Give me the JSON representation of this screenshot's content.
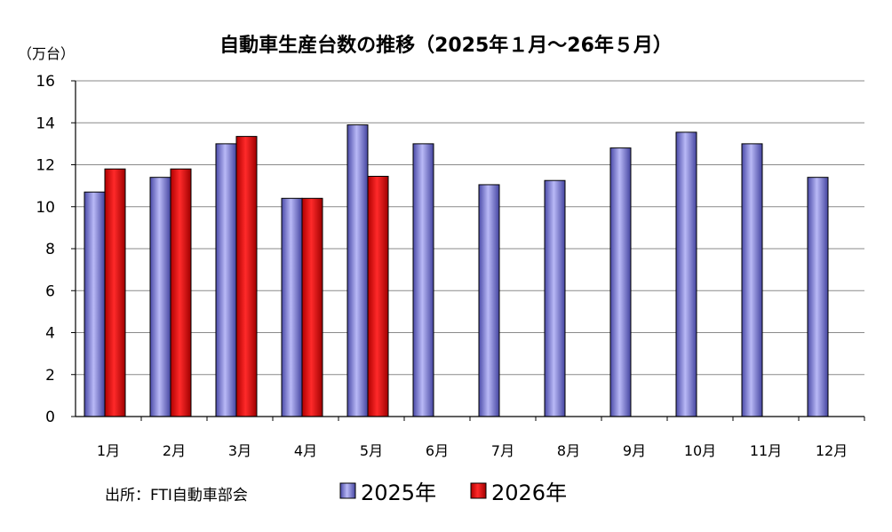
{
  "chart_data": {
    "type": "bar",
    "title": "自動車生産台数の推移（2025年１月～26年５月）",
    "ylabel": "（万台）",
    "xlabel": "",
    "ylim": [
      0,
      16
    ],
    "yticks": [
      0,
      2,
      4,
      6,
      8,
      10,
      12,
      14,
      16
    ],
    "grid": true,
    "legend_position": "bottom",
    "categories": [
      "1月",
      "2月",
      "3月",
      "4月",
      "5月",
      "6月",
      "7月",
      "8月",
      "9月",
      "10月",
      "11月",
      "12月"
    ],
    "series": [
      {
        "name": "2025年",
        "color": "#7b7bdd",
        "values": [
          10.7,
          11.4,
          13.0,
          10.4,
          13.9,
          13.0,
          11.05,
          11.25,
          12.8,
          13.55,
          13.0,
          11.4
        ]
      },
      {
        "name": "2026年",
        "color": "#e00000",
        "values": [
          11.8,
          11.8,
          13.35,
          10.4,
          11.45,
          null,
          null,
          null,
          null,
          null,
          null,
          null
        ]
      }
    ],
    "source": "出所：FTI自動車部会"
  }
}
